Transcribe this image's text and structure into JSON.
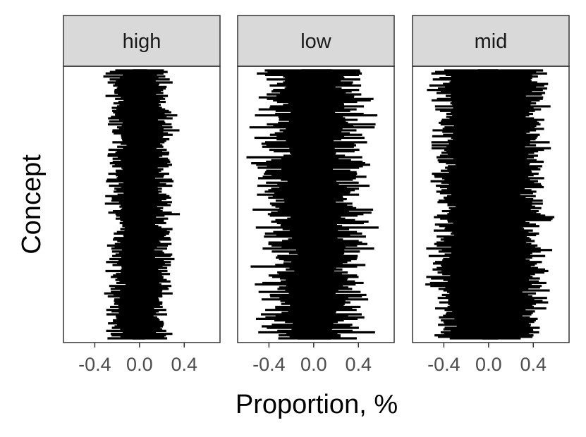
{
  "chart_data": {
    "type": "forest",
    "xlabel": "Proportion, %",
    "ylabel": "Concept",
    "xlim": [
      -0.68,
      0.72
    ],
    "x_ticks": [
      -0.4,
      0.0,
      0.4
    ],
    "x_tick_labels": [
      "-0.4",
      "0.0",
      "0.4"
    ],
    "y_ticks": "none",
    "panel_background": "#ffffff",
    "strip_fill": "#d9d9d9",
    "mark_color": "#000000",
    "panels": [
      {
        "label": "high",
        "rows": 180,
        "interval_center_profile": [
          -0.02,
          0.0,
          0.03,
          0.01,
          -0.01,
          0.02,
          0.0,
          0.02,
          -0.02,
          0.0
        ],
        "interval_halfwidth_range": [
          0.18,
          0.32
        ],
        "point_estimate_range": [
          -0.15,
          0.15
        ]
      },
      {
        "label": "low",
        "rows": 180,
        "interval_center_profile": [
          0.02,
          0.0,
          -0.01,
          -0.03,
          -0.02,
          0.0,
          0.02,
          0.0,
          -0.01,
          0.0
        ],
        "interval_halfwidth_range": [
          0.22,
          0.55
        ],
        "point_estimate_range": [
          -0.35,
          0.43
        ]
      },
      {
        "label": "mid",
        "rows": 180,
        "interval_center_profile": [
          0.0,
          0.02,
          0.01,
          0.0,
          -0.01,
          0.01,
          0.0,
          -0.01,
          0.02,
          0.0
        ],
        "interval_halfwidth_range": [
          0.38,
          0.55
        ],
        "point_estimate_range": [
          -0.2,
          0.25
        ]
      }
    ]
  }
}
